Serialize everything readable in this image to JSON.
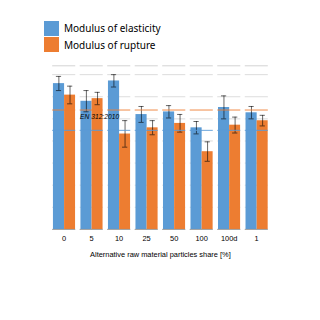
{
  "chart_data": {
    "type": "bar",
    "xlabel": "Alternative raw material particles share [%]",
    "categories": [
      "0",
      "5",
      "10",
      "25",
      "50",
      "100",
      "100d",
      "1"
    ],
    "series": [
      {
        "name": "Modulus of elasticity",
        "color": "#5B9BD5",
        "values": [
          16.5,
          14.5,
          16.8,
          13.0,
          13.3,
          11.5,
          13.8,
          13.2
        ],
        "errors": [
          0.8,
          1.2,
          0.7,
          0.9,
          0.7,
          0.7,
          1.3,
          0.7
        ]
      },
      {
        "name": "Modulus of rupture",
        "color": "#ED7D31",
        "values": [
          15.2,
          14.8,
          10.8,
          11.5,
          12.0,
          8.8,
          11.8,
          12.3
        ],
        "errors": [
          1.0,
          0.7,
          1.5,
          0.8,
          1.0,
          1.1,
          0.9,
          0.6
        ]
      }
    ],
    "ylim": [
      0,
      18.5
    ],
    "yticks": [
      0,
      2.5,
      5,
      7.5,
      10,
      12.5,
      15,
      17.5
    ],
    "grid": true,
    "legend": "top",
    "tick_labels": "x",
    "hlines": [
      {
        "value": 13.5,
        "color": "#ED7D31"
      },
      {
        "value": 11.2,
        "color": "#5B9BD5"
      }
    ],
    "annotations": [
      {
        "text": "EN 312:2010"
      }
    ]
  }
}
